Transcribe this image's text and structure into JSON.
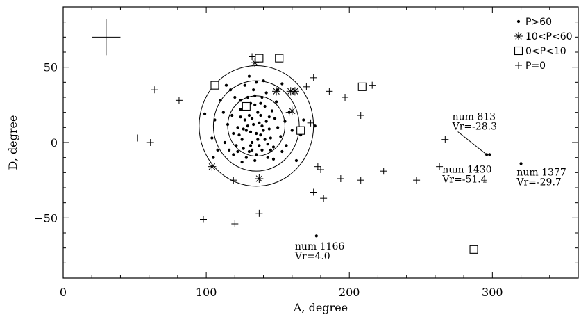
{
  "chart_data": {
    "type": "scatter",
    "title": "",
    "xlabel": "A, degree",
    "ylabel": "D, degree",
    "xlim": [
      0,
      360
    ],
    "ylim": [
      -90,
      90
    ],
    "xticks": [
      0,
      100,
      200,
      300
    ],
    "yticks": [
      -50,
      0,
      50
    ],
    "legend": {
      "position": "top-right",
      "entries": [
        {
          "symbol": "dot",
          "label": "P>60"
        },
        {
          "symbol": "asterisk",
          "label": "10<P<60"
        },
        {
          "symbol": "square",
          "label": "0<P<10"
        },
        {
          "symbol": "plus",
          "label": "P=0"
        }
      ]
    },
    "error_bar": {
      "x": 30,
      "y": 70,
      "x_err": 10,
      "y_err": 12
    },
    "circles": [
      {
        "cx": 135,
        "cy": 11,
        "r": 20
      },
      {
        "cx": 135,
        "cy": 11,
        "r": 30
      },
      {
        "cx": 135,
        "cy": 11,
        "r": 40
      }
    ],
    "series": [
      {
        "name": "P>60",
        "symbol": "dot",
        "points": [
          [
            128,
            8
          ],
          [
            133,
            12
          ],
          [
            138,
            5
          ],
          [
            130,
            18
          ],
          [
            142,
            14
          ],
          [
            125,
            2
          ],
          [
            136,
            20
          ],
          [
            131,
            -2
          ],
          [
            140,
            8
          ],
          [
            127,
            15
          ],
          [
            134,
            25
          ],
          [
            145,
            3
          ],
          [
            122,
            10
          ],
          [
            139,
            -5
          ],
          [
            129,
            30
          ],
          [
            148,
            16
          ],
          [
            132,
            0
          ],
          [
            137,
            13
          ],
          [
            124,
            22
          ],
          [
            143,
            -1
          ],
          [
            119,
            6
          ],
          [
            150,
            10
          ],
          [
            135,
            -8
          ],
          [
            126,
            -4
          ],
          [
            141,
            24
          ],
          [
            118,
            18
          ],
          [
            146,
            21
          ],
          [
            133,
            35
          ],
          [
            128,
            -10
          ],
          [
            152,
            4
          ],
          [
            115,
            12
          ],
          [
            139,
            30
          ],
          [
            124,
            28
          ],
          [
            131,
            7
          ],
          [
            136,
            2
          ],
          [
            144,
            9
          ],
          [
            121,
            -2
          ],
          [
            130,
            -6
          ],
          [
            147,
            -3
          ],
          [
            138,
            18
          ],
          [
            112,
            20
          ],
          [
            155,
            14
          ],
          [
            127,
            38
          ],
          [
            142,
            33
          ],
          [
            134,
            -12
          ],
          [
            120,
            30
          ],
          [
            149,
            27
          ],
          [
            116,
            -5
          ],
          [
            153,
            -6
          ],
          [
            129,
            11
          ],
          [
            137,
            -2
          ],
          [
            123,
            5
          ],
          [
            141,
            2
          ],
          [
            132,
            16
          ],
          [
            126,
            9
          ],
          [
            135,
            6
          ],
          [
            139,
            11
          ],
          [
            128,
            22
          ],
          [
            144,
            17
          ],
          [
            131,
            26
          ],
          [
            106,
            15
          ],
          [
            110,
            28
          ],
          [
            158,
            20
          ],
          [
            117,
            35
          ],
          [
            150,
            35
          ],
          [
            135,
            40
          ],
          [
            125,
            -13
          ],
          [
            143,
            -10
          ],
          [
            113,
            0
          ],
          [
            156,
            -2
          ],
          [
            108,
            -5
          ],
          [
            160,
            8
          ],
          [
            119,
            -8
          ],
          [
            147,
            -11
          ],
          [
            124,
            17
          ],
          [
            132,
            -5
          ],
          [
            138,
            26
          ],
          [
            145,
            -5
          ],
          [
            122,
            -6
          ],
          [
            134,
            31
          ],
          [
            99,
            19
          ],
          [
            104,
            3
          ],
          [
            166,
            5
          ],
          [
            168,
            15
          ],
          [
            105,
            -10
          ],
          [
            163,
            -12
          ],
          [
            114,
            38
          ],
          [
            153,
            39
          ],
          [
            130,
            44
          ],
          [
            140,
            41
          ],
          [
            176,
            11
          ],
          [
            296,
            -8
          ],
          [
            320,
            -14
          ],
          [
            177,
            -62
          ],
          [
            298,
            -8
          ]
        ]
      },
      {
        "name": "10<P<60",
        "symbol": "asterisk",
        "points": [
          [
            134,
            53
          ],
          [
            104,
            -16
          ],
          [
            137,
            -24
          ],
          [
            149,
            34
          ],
          [
            159,
            34
          ],
          [
            162,
            34
          ],
          [
            160,
            21
          ]
        ]
      },
      {
        "name": "0<P<10",
        "symbol": "square",
        "points": [
          [
            106,
            38
          ],
          [
            137,
            56
          ],
          [
            151,
            56
          ],
          [
            128,
            24
          ],
          [
            166,
            8
          ],
          [
            209,
            37
          ],
          [
            287,
            -71
          ]
        ]
      },
      {
        "name": "P=0",
        "symbol": "plus",
        "points": [
          [
            132,
            57
          ],
          [
            64,
            35
          ],
          [
            81,
            28
          ],
          [
            52,
            3
          ],
          [
            61,
            0
          ],
          [
            175,
            43
          ],
          [
            170,
            37
          ],
          [
            186,
            34
          ],
          [
            197,
            30
          ],
          [
            208,
            18
          ],
          [
            216,
            38
          ],
          [
            158,
            20
          ],
          [
            173,
            13
          ],
          [
            178,
            -16
          ],
          [
            180,
            -18
          ],
          [
            119,
            -25
          ],
          [
            194,
            -24
          ],
          [
            208,
            -25
          ],
          [
            224,
            -19
          ],
          [
            247,
            -25
          ],
          [
            267,
            2
          ],
          [
            175,
            -33
          ],
          [
            182,
            -37
          ],
          [
            137,
            -47
          ],
          [
            98,
            -51
          ],
          [
            120,
            -54
          ],
          [
            263,
            -16
          ]
        ]
      }
    ],
    "annotations": [
      {
        "line1": "num  813",
        "line2": "Vr=-28.3",
        "x": 272,
        "y": 15,
        "pointer": [
          296,
          -8
        ]
      },
      {
        "line1": "num  1430",
        "line2": "Vr=-51.4",
        "x": 265,
        "y": -20
      },
      {
        "line1": "num  1377",
        "line2": "Vr=-29.7",
        "x": 317,
        "y": -22
      },
      {
        "line1": "num  1166",
        "line2": "Vr=4.0",
        "x": 162,
        "y": -71
      }
    ]
  }
}
